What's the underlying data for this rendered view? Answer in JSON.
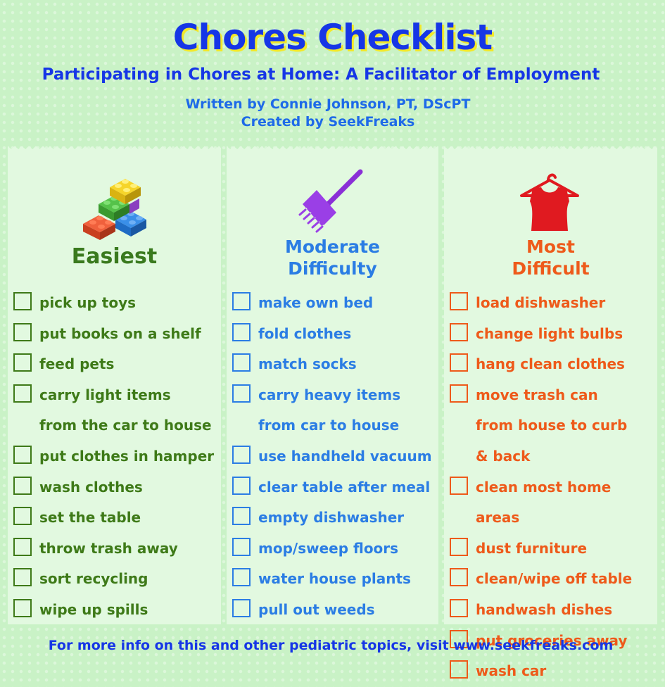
{
  "header": {
    "title": "Chores Checklist",
    "subtitle": "Participating in Chores at Home: A Facilitator of Employment",
    "written_by": "Written by  Connie Johnson, PT, DScPT",
    "created_by": "Created by SeekFreaks"
  },
  "columns": [
    {
      "heading_lines": [
        "Easiest"
      ],
      "icon": "lego-blocks-icon",
      "color": "#3e7a18",
      "items": [
        "pick up toys",
        "put books on a shelf",
        "feed pets",
        "carry light items from the car to house",
        "put clothes in hamper",
        "wash clothes",
        "set the table",
        "throw trash away",
        "sort recycling",
        "wipe up spills"
      ]
    },
    {
      "heading_lines": [
        "Moderate",
        "Difficulty"
      ],
      "icon": "broom-icon",
      "color": "#2b7de4",
      "items": [
        "make own bed",
        "fold clothes",
        "match socks",
        "carry heavy items from car to house",
        "use handheld vacuum",
        "clear table after meal",
        "empty dishwasher",
        "mop/sweep floors",
        "water house plants",
        "pull out weeds"
      ]
    },
    {
      "heading_lines": [
        "Most",
        "Difficult"
      ],
      "icon": "shirt-on-hanger-icon",
      "color": "#ee5a1a",
      "items": [
        "load dishwasher",
        "change light bulbs",
        "hang clean clothes",
        "move trash can from house to curb & back",
        "clean most home areas",
        "dust furniture",
        "clean/wipe off table",
        "handwash dishes",
        "put groceries away",
        "wash car"
      ]
    }
  ],
  "footer": "For more info on this and other pediatric topics, visit www.seekfreaks.com"
}
